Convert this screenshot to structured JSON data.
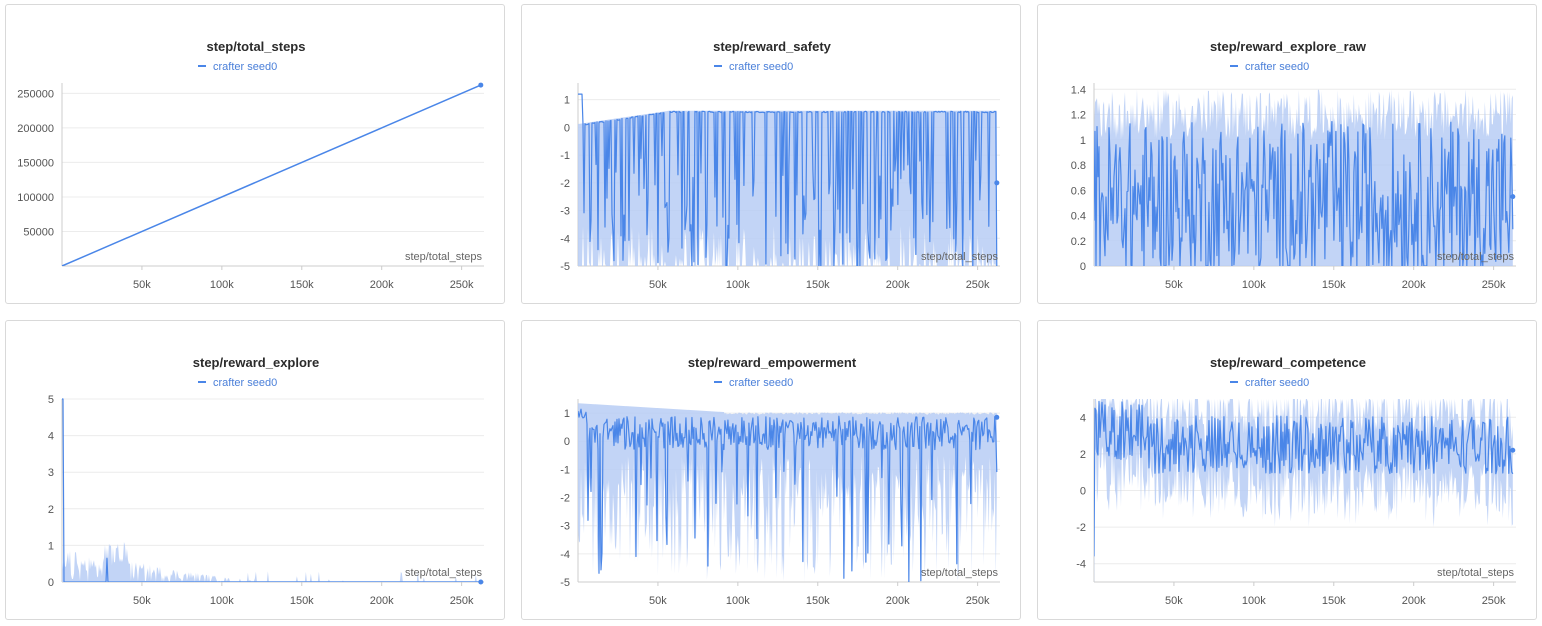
{
  "legend_series": "crafter  seed0",
  "colors": {
    "line": "#4a86e8",
    "band": "#b7cdf4",
    "grid": "#ececec",
    "axis": "#cccccc"
  },
  "chart_data": [
    {
      "type": "line",
      "title": "step/total_steps",
      "xlabel": "step/total_steps",
      "ylabel": "",
      "xlim": [
        0,
        264000
      ],
      "ylim": [
        0,
        265000
      ],
      "xticks": [
        50000,
        100000,
        150000,
        200000,
        250000
      ],
      "xtick_labels": [
        "50k",
        "100k",
        "150k",
        "200k",
        "250k"
      ],
      "yticks": [
        50000,
        100000,
        150000,
        200000,
        250000
      ],
      "ytick_labels": [
        "50000",
        "100000",
        "150000",
        "200000",
        "250000"
      ],
      "grid": true,
      "series": [
        {
          "name": "crafter seed0",
          "x": [
            0,
            262000
          ],
          "y": [
            0,
            262000
          ],
          "band": false
        }
      ]
    },
    {
      "type": "line",
      "title": "step/reward_safety",
      "xlabel": "step/total_steps",
      "ylabel": "",
      "xlim": [
        0,
        264000
      ],
      "ylim": [
        -5,
        1.6
      ],
      "xticks": [
        50000,
        100000,
        150000,
        200000,
        250000
      ],
      "xtick_labels": [
        "50k",
        "100k",
        "150k",
        "200k",
        "250k"
      ],
      "yticks": [
        1,
        0,
        -1,
        -2,
        -3,
        -4,
        -5
      ],
      "ytick_labels": [
        "1",
        "0",
        "-1",
        "-2",
        "-3",
        "-4",
        "-5"
      ],
      "grid": true,
      "series": [
        {
          "name": "crafter seed0",
          "band": true,
          "pattern": "safety",
          "last": -2.0
        }
      ]
    },
    {
      "type": "line",
      "title": "step/reward_explore_raw",
      "xlabel": "step/total_steps",
      "ylabel": "",
      "xlim": [
        0,
        264000
      ],
      "ylim": [
        0,
        1.45
      ],
      "xticks": [
        50000,
        100000,
        150000,
        200000,
        250000
      ],
      "xtick_labels": [
        "50k",
        "100k",
        "150k",
        "200k",
        "250k"
      ],
      "yticks": [
        1.4,
        1.2,
        1,
        0.8,
        0.6,
        0.4,
        0.2,
        0
      ],
      "ytick_labels": [
        "1.4",
        "1.2",
        "1",
        "0.8",
        "0.6",
        "0.4",
        "0.2",
        "0"
      ],
      "grid": true,
      "series": [
        {
          "name": "crafter seed0",
          "band": true,
          "pattern": "explore_raw",
          "last": 0.55
        }
      ]
    },
    {
      "type": "line",
      "title": "step/reward_explore",
      "xlabel": "step/total_steps",
      "ylabel": "",
      "xlim": [
        0,
        264000
      ],
      "ylim": [
        0,
        5
      ],
      "xticks": [
        50000,
        100000,
        150000,
        200000,
        250000
      ],
      "xtick_labels": [
        "50k",
        "100k",
        "150k",
        "200k",
        "250k"
      ],
      "yticks": [
        5,
        4,
        3,
        2,
        1,
        0
      ],
      "ytick_labels": [
        "5",
        "4",
        "3",
        "2",
        "1",
        "0"
      ],
      "grid": true,
      "series": [
        {
          "name": "crafter seed0",
          "band": true,
          "pattern": "explore",
          "last": 0.0
        }
      ]
    },
    {
      "type": "line",
      "title": "step/reward_empowerment",
      "xlabel": "step/total_steps",
      "ylabel": "",
      "xlim": [
        0,
        264000
      ],
      "ylim": [
        -5,
        1.5
      ],
      "xticks": [
        50000,
        100000,
        150000,
        200000,
        250000
      ],
      "xtick_labels": [
        "50k",
        "100k",
        "150k",
        "200k",
        "250k"
      ],
      "yticks": [
        1,
        0,
        -1,
        -2,
        -3,
        -4,
        -5
      ],
      "ytick_labels": [
        "1",
        "0",
        "-1",
        "-2",
        "-3",
        "-4",
        "-5"
      ],
      "grid": true,
      "series": [
        {
          "name": "crafter seed0",
          "band": true,
          "pattern": "empowerment",
          "last": 0.85
        }
      ]
    },
    {
      "type": "line",
      "title": "step/reward_competence",
      "xlabel": "step/total_steps",
      "ylabel": "",
      "xlim": [
        0,
        264000
      ],
      "ylim": [
        -5,
        5
      ],
      "xticks": [
        50000,
        100000,
        150000,
        200000,
        250000
      ],
      "xtick_labels": [
        "50k",
        "100k",
        "150k",
        "200k",
        "250k"
      ],
      "yticks": [
        4,
        2,
        0,
        -2,
        -4
      ],
      "ytick_labels": [
        "4",
        "2",
        "0",
        "-2",
        "-4"
      ],
      "grid": true,
      "series": [
        {
          "name": "crafter seed0",
          "band": true,
          "pattern": "competence",
          "last": 2.2
        }
      ]
    }
  ]
}
